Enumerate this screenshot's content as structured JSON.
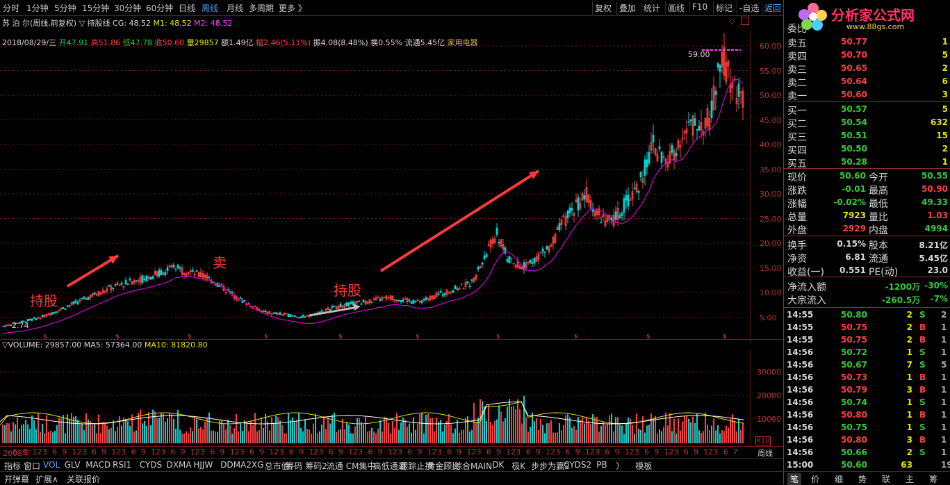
{
  "toolbar": {
    "left_items": [
      "分时",
      "1分钟",
      "5分钟",
      "15分钟",
      "30分钟",
      "60分钟",
      "日线",
      "周线",
      "月线",
      "多周期",
      "更多 》"
    ],
    "active_item": "周线",
    "right_items": [
      "复权",
      "叠加",
      "统计",
      "画线",
      "F10",
      "标记",
      "-自选",
      "返回"
    ],
    "active_right": "返回"
  },
  "header": {
    "stock_title": "苏 泊 尔(周线,前复权)",
    "indicator": "▽ 持股线",
    "cg": "CG: 48.52",
    "m1": "M1: 48.52",
    "m2": "M2: 48.52"
  },
  "bar_info": {
    "date": "2018/08/29/三",
    "open": "开47.91",
    "high": "高51.86",
    "low": "低47.78",
    "close": "收50.60",
    "vol": "量29857",
    "amount": "额1.49亿",
    "change": "幅2.46(5.11%)",
    "amp": "振4.08(8.48%)",
    "turnover": "换0.55%",
    "float": "流通5.45亿",
    "sector": "家用电器"
  },
  "annotations": {
    "hold1": "持股",
    "sell": "卖",
    "hold2": "持股",
    "high_label": "59.00",
    "low_label": "2.74"
  },
  "volume_header": {
    "title": "▽VOLUME: 29857.00",
    "ma5": "MA5: 57364.00",
    "ma10": "MA10: 81820.80"
  },
  "price_axis": [
    "60.00",
    "55.00",
    "50.00",
    "45.00",
    "40.00",
    "35.00",
    "30.00",
    "25.00",
    "20.00",
    "15.00",
    "10.00",
    "5.00"
  ],
  "vol_axis": [
    "30000",
    "20000",
    "10000"
  ],
  "vol_axis_unit": "X10",
  "time_axis": [
    "2008年",
    "6",
    "9",
    "12",
    "3",
    "6",
    "9",
    "12",
    "3",
    "6",
    "9",
    "12",
    "3",
    "6",
    "9",
    "12",
    "3",
    "6",
    "9",
    "12",
    "3",
    "6",
    "9",
    "12",
    "3",
    "6",
    "9",
    "12",
    "3",
    "6",
    "9",
    "12",
    "3",
    "6",
    "9",
    "12",
    "3",
    "6",
    "9",
    "12",
    "3",
    "6",
    "9",
    "12",
    "3",
    "6",
    "9",
    "12",
    "3",
    "6",
    "9",
    "12",
    "3",
    "6",
    "9",
    "12",
    "3",
    "6",
    "9",
    "12",
    "3",
    "6",
    "9",
    "12",
    "3",
    "6",
    "9",
    "12",
    "3",
    "6",
    "9",
    "12",
    "3",
    "6",
    "7"
  ],
  "time_axis_right": "周线",
  "bottom_tabs": [
    "指标",
    "窗口",
    "VOL",
    "GLV",
    "MACD",
    "RSI1",
    "CYDS",
    "DXMA",
    "HJJW",
    "DDMA2XG",
    "总市值",
    "筹码",
    "筹码2",
    "流通",
    "CM集中",
    "高低通道",
    "跟踪止损",
    "黄金顾比",
    "综合MAIN",
    "DK",
    "极K",
    "步步为赢2",
    "CYDS2",
    "PB",
    "〉",
    "模板"
  ],
  "active_bottom_tab": "VOL",
  "bottom_tabs2": [
    "开弹幕",
    "扩展∧",
    "关联报价"
  ],
  "right_panel": {
    "weibi_label": "委比",
    "logo_text": "分析家公式网",
    "logo_url": "www.88gs.com",
    "asks": [
      {
        "label": "卖五",
        "price": "50.77",
        "vol": "1"
      },
      {
        "label": "卖四",
        "price": "50.70",
        "vol": "5"
      },
      {
        "label": "卖三",
        "price": "50.65",
        "vol": "2"
      },
      {
        "label": "卖二",
        "price": "50.64",
        "vol": "6"
      },
      {
        "label": "卖一",
        "price": "50.60",
        "vol": "3"
      }
    ],
    "bids": [
      {
        "label": "买一",
        "price": "50.57",
        "vol": "5"
      },
      {
        "label": "买二",
        "price": "50.54",
        "vol": "632"
      },
      {
        "label": "买三",
        "price": "50.51",
        "vol": "15"
      },
      {
        "label": "买四",
        "price": "50.50",
        "vol": "2"
      },
      {
        "label": "买五",
        "price": "50.28",
        "vol": "1"
      }
    ],
    "quote1": [
      {
        "l1": "现价",
        "v1": "50.60",
        "c1": "#33cc33",
        "l2": "今开",
        "v2": "50.55",
        "c2": "#33cc33"
      },
      {
        "l1": "涨跌",
        "v1": "-0.01",
        "c1": "#33cc33",
        "l2": "最高",
        "v2": "50.90",
        "c2": "#ff4040"
      },
      {
        "l1": "涨幅",
        "v1": "-0.02%",
        "c1": "#33cc33",
        "l2": "最低",
        "v2": "49.33",
        "c2": "#33cc33"
      },
      {
        "l1": "总量",
        "v1": "7923",
        "c1": "#e6e600",
        "l2": "量比",
        "v2": "1.03",
        "c2": "#ff4040"
      },
      {
        "l1": "外盘",
        "v1": "2929",
        "c1": "#ff4040",
        "l2": "内盘",
        "v2": "4994",
        "c2": "#33cc33"
      }
    ],
    "quote2": [
      {
        "l1": "换手",
        "v1": "0.15%",
        "c1": "#d8d8d8",
        "l2": "股本",
        "v2": "8.21亿",
        "c2": "#d8d8d8"
      },
      {
        "l1": "净资",
        "v1": "6.81",
        "c1": "#d8d8d8",
        "l2": "流通",
        "v2": "5.45亿",
        "c2": "#d8d8d8"
      },
      {
        "l1": "收益(一)",
        "v1": "0.551",
        "c1": "#d8d8d8",
        "l2": "PE(动)",
        "v2": "23.0",
        "c2": "#d8d8d8"
      }
    ],
    "flow": [
      {
        "label": "净流入额",
        "v1": "-1200万",
        "v2": "-30%"
      },
      {
        "label": "大宗流入",
        "v1": "-260.5万",
        "v2": "-7%"
      }
    ],
    "ticks": [
      {
        "t": "14:55",
        "p": "50.80",
        "v": "2",
        "bs": "S",
        "n": "2"
      },
      {
        "t": "14:55",
        "p": "50.75",
        "v": "2",
        "bs": "B",
        "n": "1"
      },
      {
        "t": "14:55",
        "p": "50.75",
        "v": "2",
        "bs": "B",
        "n": "1"
      },
      {
        "t": "14:56",
        "p": "50.72",
        "v": "1",
        "bs": "S",
        "n": "1"
      },
      {
        "t": "14:56",
        "p": "50.67",
        "v": "7",
        "bs": "S",
        "n": "5"
      },
      {
        "t": "14:56",
        "p": "50.73",
        "v": "1",
        "bs": "B",
        "n": "1"
      },
      {
        "t": "14:56",
        "p": "50.79",
        "v": "3",
        "bs": "B",
        "n": "1"
      },
      {
        "t": "14:56",
        "p": "50.74",
        "v": "1",
        "bs": "S",
        "n": "1"
      },
      {
        "t": "14:56",
        "p": "50.80",
        "v": "1",
        "bs": "B",
        "n": "1"
      },
      {
        "t": "14:56",
        "p": "50.75",
        "v": "1",
        "bs": "S",
        "n": "1"
      },
      {
        "t": "14:56",
        "p": "50.80",
        "v": "3",
        "bs": "B",
        "n": "1"
      },
      {
        "t": "14:56",
        "p": "50.66",
        "v": "2",
        "bs": "S",
        "n": "1"
      },
      {
        "t": "15:00",
        "p": "50.60",
        "v": "63",
        "bs": "",
        "n": "19"
      }
    ],
    "bottom_tabs": [
      "笔",
      "价",
      "细",
      "势",
      "联",
      "主",
      "筹"
    ],
    "active_bottom": "笔"
  },
  "colors": {
    "up": "#ff4040",
    "down": "#00d8d8",
    "ma": "#d000d0",
    "grid": "#7a1a1a",
    "annotation": "#ff3a3a"
  }
}
